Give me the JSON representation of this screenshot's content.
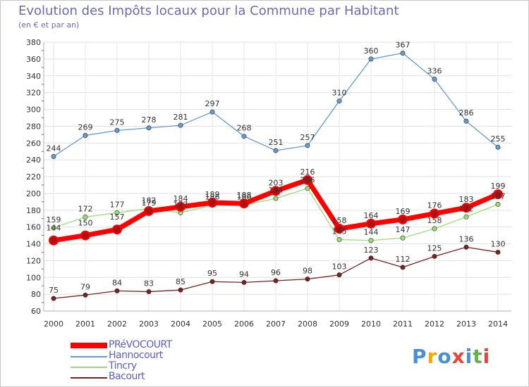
{
  "title": "Evolution des Impôts locaux pour la Commune par Habitant",
  "subtitle": "(en € et par an)",
  "logo": {
    "text": "Proxiti",
    "colors": [
      "#4a8fd4",
      "#f2a900",
      "#4a8fd4",
      "#e8443a",
      "#4a8fd4",
      "#6ab04c",
      "#e8443a"
    ]
  },
  "chart_data": {
    "type": "line",
    "x": [
      2000,
      2001,
      2002,
      2003,
      2004,
      2005,
      2006,
      2007,
      2008,
      2009,
      2010,
      2011,
      2012,
      2013,
      2014
    ],
    "ylim": [
      60,
      380
    ],
    "yticks": [
      60,
      80,
      100,
      120,
      140,
      160,
      180,
      200,
      220,
      240,
      260,
      280,
      300,
      320,
      340,
      360,
      380
    ],
    "grid": true,
    "legend_position": "bottom-left",
    "series": [
      {
        "name": "PRéVOCOURT",
        "color": "#ff0000",
        "values": [
          144,
          150,
          157,
          179,
          184,
          189,
          188,
          203,
          216,
          158,
          164,
          169,
          176,
          183,
          199
        ]
      },
      {
        "name": "Hannocourt",
        "color": "#6699cc",
        "values": [
          244,
          269,
          275,
          278,
          281,
          297,
          268,
          251,
          257,
          310,
          360,
          367,
          336,
          286,
          255
        ]
      },
      {
        "name": "Tincry",
        "color": "#99dd77",
        "values": [
          159,
          172,
          177,
          182,
          177,
          186,
          186,
          194,
          206,
          145,
          144,
          147,
          158,
          172,
          187
        ]
      },
      {
        "name": "Bacourt",
        "color": "#772222",
        "values": [
          75,
          79,
          84,
          83,
          85,
          95,
          94,
          96,
          98,
          103,
          123,
          112,
          125,
          136,
          130
        ]
      }
    ]
  }
}
